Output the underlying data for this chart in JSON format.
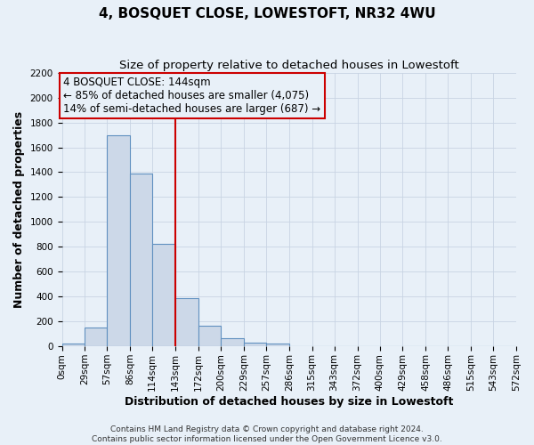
{
  "title": "4, BOSQUET CLOSE, LOWESTOFT, NR32 4WU",
  "subtitle": "Size of property relative to detached houses in Lowestoft",
  "xlabel": "Distribution of detached houses by size in Lowestoft",
  "ylabel": "Number of detached properties",
  "bin_labels": [
    "0sqm",
    "29sqm",
    "57sqm",
    "86sqm",
    "114sqm",
    "143sqm",
    "172sqm",
    "200sqm",
    "229sqm",
    "257sqm",
    "286sqm",
    "315sqm",
    "343sqm",
    "372sqm",
    "400sqm",
    "429sqm",
    "458sqm",
    "486sqm",
    "515sqm",
    "543sqm",
    "572sqm"
  ],
  "bar_values": [
    20,
    155,
    1700,
    1390,
    825,
    390,
    165,
    65,
    30,
    25,
    0,
    0,
    0,
    0,
    0,
    0,
    0,
    0,
    0,
    0
  ],
  "bin_edges": [
    0,
    29,
    57,
    86,
    114,
    143,
    172,
    200,
    229,
    257,
    286,
    315,
    343,
    372,
    400,
    429,
    458,
    486,
    515,
    543,
    572
  ],
  "bar_facecolor": "#ccd8e8",
  "bar_edgecolor": "#6090c0",
  "property_line_x": 143,
  "property_line_color": "#cc0000",
  "annotation_line1": "4 BOSQUET CLOSE: 144sqm",
  "annotation_line2": "← 85% of detached houses are smaller (4,075)",
  "annotation_line3": "14% of semi-detached houses are larger (687) →",
  "annotation_box_edgecolor": "#cc0000",
  "ylim": [
    0,
    2200
  ],
  "yticks": [
    0,
    200,
    400,
    600,
    800,
    1000,
    1200,
    1400,
    1600,
    1800,
    2000,
    2200
  ],
  "grid_color": "#c8d4e3",
  "background_color": "#e8f0f8",
  "footer_line1": "Contains HM Land Registry data © Crown copyright and database right 2024.",
  "footer_line2": "Contains public sector information licensed under the Open Government Licence v3.0.",
  "title_fontsize": 11,
  "subtitle_fontsize": 9.5,
  "axis_label_fontsize": 9,
  "tick_fontsize": 7.5,
  "annotation_fontsize": 8.5,
  "footer_fontsize": 6.5
}
